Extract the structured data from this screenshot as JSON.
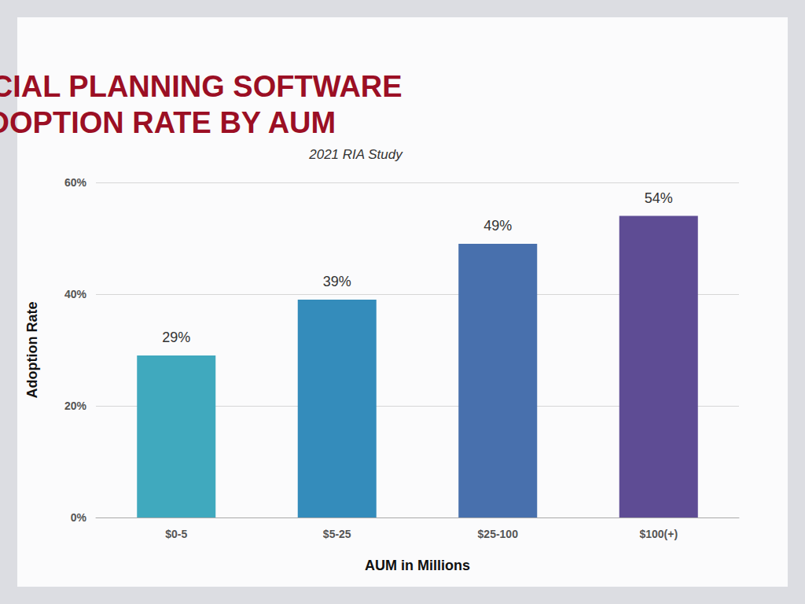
{
  "chart_data": {
    "type": "bar",
    "title": "FINANCIAL PLANNING SOFTWARE\nADOPTION RATE BY AUM",
    "subtitle": "2021 RIA Study",
    "x_label": "AUM in Millions",
    "y_label": "Adoption Rate",
    "categories": [
      "$0-5",
      "$5-25",
      "$25-100",
      "$100(+)"
    ],
    "values": [
      29,
      39,
      49,
      54
    ],
    "value_labels": [
      "29%",
      "39%",
      "49%",
      "54%"
    ],
    "colors": [
      "#40a9be",
      "#348cbb",
      "#4870ad",
      "#5e4c94"
    ],
    "ylim": [
      0,
      60
    ],
    "yticks": [
      {
        "value": 0,
        "label": "0%"
      },
      {
        "value": 20,
        "label": "20%"
      },
      {
        "value": 40,
        "label": "40%"
      },
      {
        "value": 60,
        "label": "60%"
      }
    ],
    "grid": true,
    "data_labels": true
  }
}
